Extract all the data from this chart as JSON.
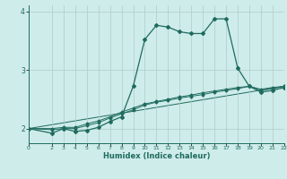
{
  "xlabel": "Humidex (Indice chaleur)",
  "bg_color": "#ceecea",
  "line_color": "#1f6b5e",
  "grid_color": "#b0ccc9",
  "xlim": [
    0,
    22
  ],
  "ylim": [
    1.75,
    4.1
  ],
  "yticks": [
    2,
    3,
    4
  ],
  "xticks": [
    0,
    2,
    3,
    4,
    5,
    6,
    7,
    8,
    9,
    10,
    11,
    12,
    13,
    14,
    15,
    16,
    17,
    18,
    19,
    20,
    21,
    22
  ],
  "series1_x": [
    0,
    2,
    3,
    4,
    5,
    6,
    7,
    8,
    9,
    10,
    11,
    12,
    13,
    14,
    15,
    16,
    17,
    18,
    19,
    20,
    21,
    22
  ],
  "series1_y": [
    2.0,
    1.92,
    2.0,
    1.95,
    1.97,
    2.02,
    2.12,
    2.2,
    2.72,
    3.52,
    3.76,
    3.73,
    3.65,
    3.62,
    3.62,
    3.87,
    3.87,
    3.03,
    2.72,
    2.62,
    2.65,
    2.7
  ],
  "series2_x": [
    0,
    2,
    3,
    4,
    5,
    6,
    7,
    8,
    9,
    10,
    11,
    12,
    13,
    14,
    15,
    16,
    17,
    18,
    19,
    20,
    21,
    22
  ],
  "series2_y": [
    2.0,
    1.98,
    2.0,
    2.0,
    2.05,
    2.1,
    2.18,
    2.25,
    2.32,
    2.4,
    2.45,
    2.48,
    2.52,
    2.55,
    2.58,
    2.62,
    2.65,
    2.68,
    2.72,
    2.65,
    2.68,
    2.72
  ],
  "series3_x": [
    0,
    2,
    3,
    4,
    5,
    6,
    7,
    8,
    9,
    10,
    11,
    12,
    13,
    14,
    15,
    16,
    17,
    18,
    19,
    20,
    21,
    22
  ],
  "series3_y": [
    2.0,
    2.0,
    2.02,
    2.02,
    2.08,
    2.13,
    2.2,
    2.28,
    2.35,
    2.42,
    2.46,
    2.5,
    2.54,
    2.57,
    2.61,
    2.64,
    2.67,
    2.7,
    2.72,
    2.67,
    2.7,
    2.72
  ],
  "series4_x": [
    0,
    22
  ],
  "series4_y": [
    2.0,
    2.72
  ]
}
